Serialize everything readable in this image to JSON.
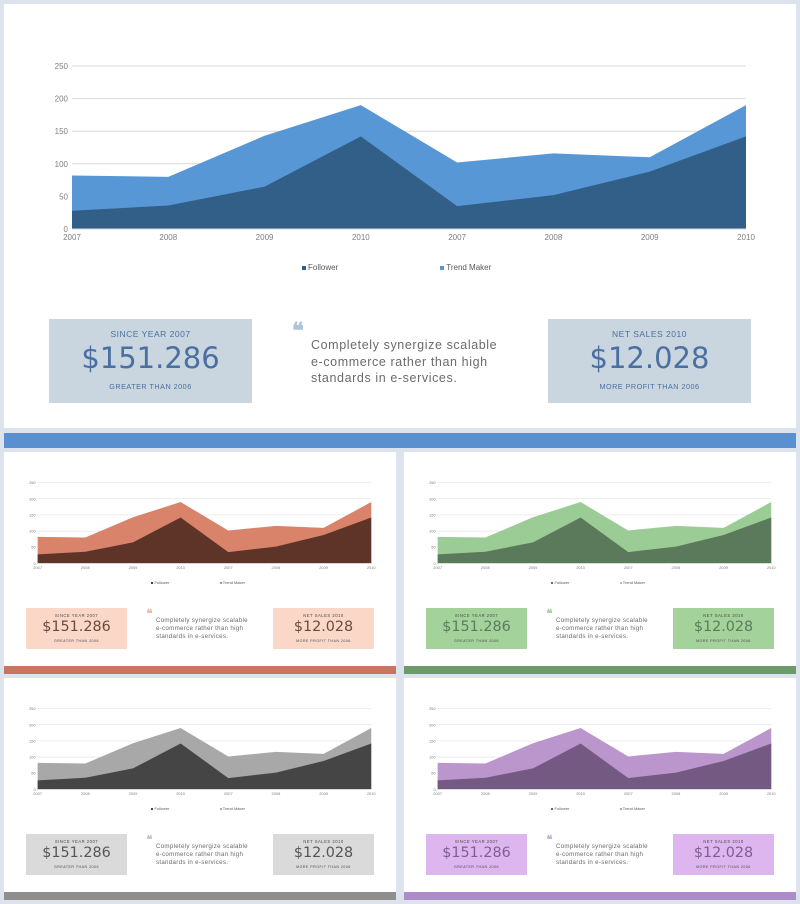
{
  "chart_data": {
    "type": "area",
    "categories": [
      "2007",
      "2008",
      "2009",
      "2010",
      "2007",
      "2008",
      "2009",
      "2010"
    ],
    "series": [
      {
        "name": "Follower",
        "values": [
          28,
          36,
          65,
          142,
          35,
          52,
          88,
          142
        ]
      },
      {
        "name": "Trend Maker",
        "values": [
          82,
          80,
          143,
          190,
          102,
          116,
          110,
          190
        ]
      }
    ],
    "yticks": [
      "0",
      "50",
      "100",
      "150",
      "200",
      "250"
    ],
    "ylim": [
      0,
      250
    ],
    "grid": true,
    "legend_position": "bottom"
  },
  "stats": {
    "left": {
      "caption": "SINCE YEAR 2007",
      "value": "$151.286",
      "subcaption": "GREATER THAN 2006"
    },
    "right": {
      "caption": "NET SALES 2010",
      "value": "$12.028",
      "subcaption": "MORE PROFIT THAN 2006"
    }
  },
  "quote": {
    "mark": "❝",
    "text": "Completely synergize scalable e-commerce rather than high standards in e-services."
  },
  "themes": [
    {
      "id": "blue",
      "dark": "#325f87",
      "light": "#5897d6",
      "box": "#c9d6df",
      "value_color": "#4a6fa0",
      "bar": "#5a8fd0",
      "quote_color": "#b0c4d8"
    },
    {
      "id": "orange",
      "dark": "#5e3428",
      "light": "#d9836b",
      "box": "#fbd7c8",
      "value_color": "#6a4a40",
      "bar": "#c9745c",
      "quote_color": "#e8b9a9"
    },
    {
      "id": "green",
      "dark": "#5b7a5c",
      "light": "#9ccc96",
      "box": "#a3d29b",
      "value_color": "#5a7c5c",
      "bar": "#6d9a6a",
      "quote_color": "#a9cfa3"
    },
    {
      "id": "gray",
      "dark": "#454545",
      "light": "#a8a8a8",
      "box": "#dadada",
      "value_color": "#555555",
      "bar": "#8e8e8e",
      "quote_color": "#c4c4c4"
    },
    {
      "id": "purple",
      "dark": "#745a83",
      "light": "#ba96cc",
      "box": "#ddb6f0",
      "value_color": "#7d5f8e",
      "bar": "#ae8ccc",
      "quote_color": "#c9aed9"
    }
  ]
}
